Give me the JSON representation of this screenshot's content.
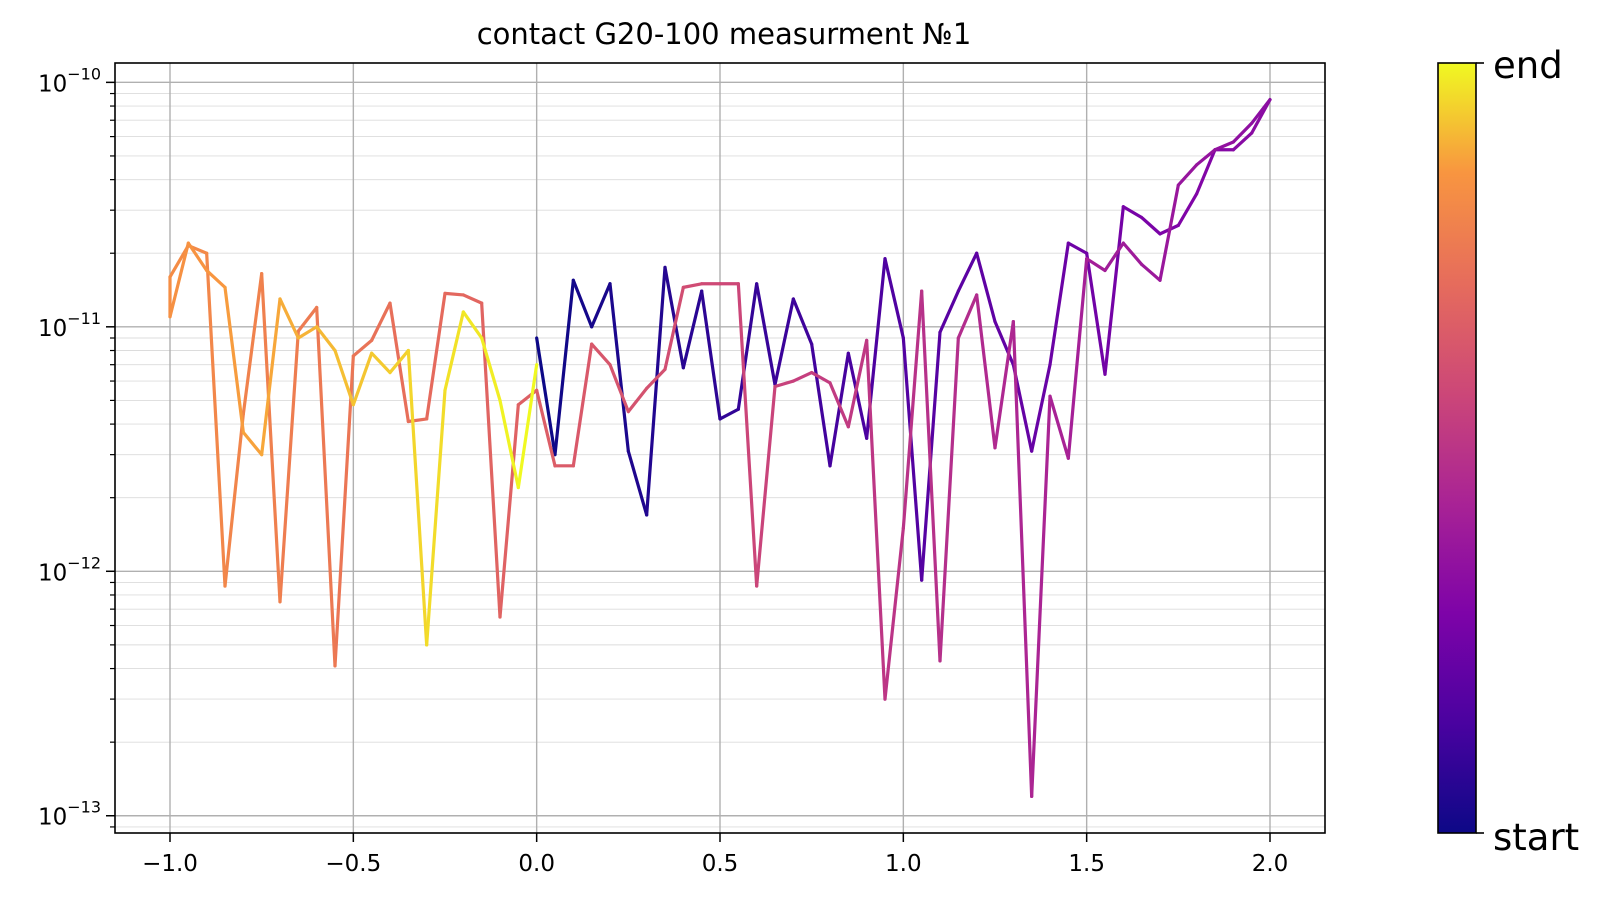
{
  "chart_data": {
    "type": "line",
    "title": "contact G20-100 measurment №1",
    "xlabel": "",
    "ylabel": "",
    "xlim": [
      -1.15,
      2.15
    ],
    "ylim": [
      8.5e-14,
      1.2e-10
    ],
    "yscale": "log",
    "grid": true,
    "x_ticks": [
      {
        "value": -1.0,
        "label": "−1.0"
      },
      {
        "value": -0.5,
        "label": "−0.5"
      },
      {
        "value": 0.0,
        "label": "0.0"
      },
      {
        "value": 0.5,
        "label": "0.5"
      },
      {
        "value": 1.0,
        "label": "1.0"
      },
      {
        "value": 1.5,
        "label": "1.5"
      },
      {
        "value": 2.0,
        "label": "2.0"
      }
    ],
    "y_ticks": [
      {
        "exp": -10,
        "base": "10",
        "exp_label": "−10"
      },
      {
        "exp": -11,
        "base": "10",
        "exp_label": "−11"
      },
      {
        "exp": -12,
        "base": "10",
        "exp_label": "−12"
      },
      {
        "exp": -13,
        "base": "10",
        "exp_label": "−13"
      }
    ],
    "colormap": "plasma",
    "colorbar": {
      "start_label": "start",
      "end_label": "end"
    },
    "x": [
      0.0,
      0.05,
      0.1,
      0.15,
      0.2,
      0.25,
      0.3,
      0.35,
      0.4,
      0.45,
      0.5,
      0.55,
      0.6,
      0.65,
      0.7,
      0.75,
      0.8,
      0.85,
      0.9,
      0.95,
      1.0,
      1.05,
      1.1,
      1.15,
      1.2,
      1.25,
      1.3,
      1.35,
      1.4,
      1.45,
      1.5,
      1.55,
      1.6,
      1.65,
      1.7,
      1.75,
      1.8,
      1.85,
      1.9,
      1.95,
      2.0,
      1.95,
      1.9,
      1.85,
      1.8,
      1.75,
      1.7,
      1.65,
      1.6,
      1.55,
      1.5,
      1.45,
      1.4,
      1.35,
      1.3,
      1.25,
      1.2,
      1.15,
      1.1,
      1.05,
      1.0,
      0.95,
      0.9,
      0.85,
      0.8,
      0.75,
      0.7,
      0.65,
      0.6,
      0.55,
      0.5,
      0.45,
      0.4,
      0.35,
      0.3,
      0.25,
      0.2,
      0.15,
      0.1,
      0.05,
      0.0,
      -0.05,
      -0.1,
      -0.15,
      -0.2,
      -0.25,
      -0.3,
      -0.35,
      -0.4,
      -0.45,
      -0.5,
      -0.55,
      -0.6,
      -0.65,
      -0.7,
      -0.75,
      -0.8,
      -0.85,
      -0.9,
      -0.95,
      -1.0,
      -1.0,
      -0.95,
      -0.9,
      -0.85,
      -0.8,
      -0.75,
      -0.7,
      -0.65,
      -0.6,
      -0.55,
      -0.5,
      -0.45,
      -0.4,
      -0.35,
      -0.3,
      -0.25,
      -0.2,
      -0.15,
      -0.1,
      -0.05,
      0.0
    ],
    "y": [
      9e-12,
      3e-12,
      1.55e-11,
      1e-11,
      1.5e-11,
      3.1e-12,
      1.7e-12,
      1.75e-11,
      6.8e-12,
      1.4e-11,
      4.2e-12,
      4.6e-12,
      1.5e-11,
      5.8e-12,
      1.3e-11,
      8.5e-12,
      2.7e-12,
      7.8e-12,
      3.5e-12,
      1.9e-11,
      9e-12,
      9.2e-13,
      9.5e-12,
      1.4e-11,
      2e-11,
      1.05e-11,
      7e-12,
      3.1e-12,
      7e-12,
      2.2e-11,
      2e-11,
      6.4e-12,
      3.1e-11,
      2.8e-11,
      2.4e-11,
      2.6e-11,
      3.5e-11,
      5.3e-11,
      5.3e-11,
      6.2e-11,
      8.5e-11,
      6.8e-11,
      5.7e-11,
      5.3e-11,
      4.6e-11,
      3.8e-11,
      1.55e-11,
      1.8e-11,
      2.2e-11,
      1.7e-11,
      1.9e-11,
      2.9e-12,
      5.2e-12,
      1.2e-13,
      1.05e-11,
      3.2e-12,
      1.35e-11,
      9e-12,
      4.3e-13,
      1.4e-11,
      1.5e-12,
      3e-13,
      8.8e-12,
      3.9e-12,
      5.9e-12,
      6.5e-12,
      6e-12,
      5.7e-12,
      8.7e-13,
      1.5e-11,
      1.5e-11,
      1.5e-11,
      1.45e-11,
      6.7e-12,
      5.6e-12,
      4.5e-12,
      7e-12,
      8.5e-12,
      2.7e-12,
      2.7e-12,
      5.5e-12,
      4.8e-12,
      6.5e-13,
      1.25e-11,
      1.35e-11,
      1.37e-11,
      4.2e-12,
      4.1e-12,
      1.25e-11,
      8.8e-12,
      7.6e-12,
      4.1e-13,
      1.2e-11,
      9.6e-12,
      7.5e-13,
      1.65e-11,
      4.4e-12,
      8.7e-13,
      2e-11,
      2.15e-11,
      1.6e-11,
      1.1e-11,
      2.2e-11,
      1.7e-11,
      1.45e-11,
      3.7e-12,
      3e-12,
      1.3e-11,
      9e-12,
      1e-11,
      8e-12,
      4.8e-12,
      7.8e-12,
      6.5e-12,
      8e-12,
      5e-13,
      5.5e-12,
      1.15e-11,
      9e-12,
      5e-12,
      2.2e-12,
      7e-12
    ]
  }
}
